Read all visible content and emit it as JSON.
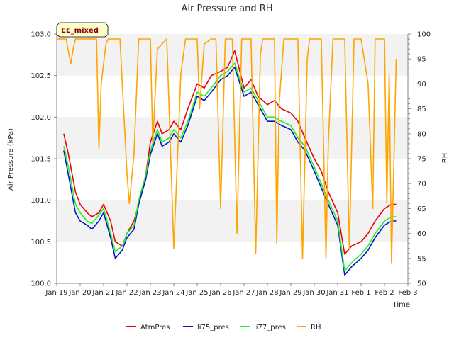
{
  "chart_data": {
    "type": "line",
    "title": "Air Pressure and RH",
    "xlabel": "Time",
    "ylabel": "Air Pressure (kPa)",
    "y2label": "RH",
    "badge": "EE_mixed",
    "x_ticks": [
      "Jan 19",
      "Jan 20",
      "Jan 21",
      "Jan 22",
      "Jan 23",
      "Jan 24",
      "Jan 25",
      "Jan 26",
      "Jan 27",
      "Jan 28",
      "Jan 29",
      "Jan 30",
      "Jan 31",
      "Feb 1",
      "Feb 2",
      "Feb 3"
    ],
    "x_range": [
      0,
      15
    ],
    "ylim": [
      100.0,
      103.0
    ],
    "y_ticks": [
      "100.0",
      "100.5",
      "101.0",
      "101.5",
      "102.0",
      "102.5",
      "103.0"
    ],
    "y2lim": [
      50,
      100
    ],
    "y2_ticks": [
      "50",
      "55",
      "60",
      "65",
      "70",
      "75",
      "80",
      "85",
      "90",
      "95",
      "100"
    ],
    "grid": "horizontal bands",
    "legend_position": "bottom",
    "colors": {
      "AtmPres": "#e8000b",
      "li75_pres": "#0018cc",
      "li77_pres": "#22ee22",
      "RH": "#ffa500",
      "band": "#f2f2f2",
      "badge_bg": "#ffffcc"
    },
    "x_unit": "days since Jan 19",
    "series": [
      {
        "name": "AtmPres",
        "axis": "left",
        "x": [
          0.3,
          0.5,
          0.8,
          1.0,
          1.3,
          1.5,
          1.8,
          2.0,
          2.3,
          2.5,
          2.8,
          3.0,
          3.3,
          3.5,
          3.8,
          4.0,
          4.3,
          4.5,
          4.8,
          5.0,
          5.3,
          5.6,
          6.0,
          6.3,
          6.6,
          7.0,
          7.3,
          7.6,
          8.0,
          8.3,
          8.6,
          9.0,
          9.3,
          9.6,
          10.0,
          10.3,
          10.6,
          11.0,
          11.3,
          11.6,
          12.0,
          12.3,
          12.6,
          13.0,
          13.3,
          13.6,
          14.0,
          14.3,
          14.5
        ],
        "values": [
          101.8,
          101.55,
          101.1,
          100.95,
          100.85,
          100.8,
          100.85,
          100.95,
          100.75,
          100.5,
          100.45,
          100.6,
          100.75,
          100.95,
          101.3,
          101.7,
          101.95,
          101.8,
          101.85,
          101.95,
          101.85,
          102.1,
          102.4,
          102.35,
          102.5,
          102.55,
          102.6,
          102.8,
          102.35,
          102.45,
          102.25,
          102.15,
          102.2,
          102.1,
          102.05,
          101.95,
          101.75,
          101.5,
          101.35,
          101.1,
          100.85,
          100.35,
          100.45,
          100.5,
          100.6,
          100.75,
          100.9,
          100.95,
          100.95
        ]
      },
      {
        "name": "li75_pres",
        "axis": "left",
        "x": [
          0.3,
          0.5,
          0.8,
          1.0,
          1.3,
          1.5,
          1.8,
          2.0,
          2.3,
          2.5,
          2.8,
          3.0,
          3.3,
          3.5,
          3.8,
          4.0,
          4.3,
          4.5,
          4.8,
          5.0,
          5.3,
          5.6,
          6.0,
          6.3,
          6.6,
          7.0,
          7.3,
          7.6,
          8.0,
          8.3,
          8.6,
          9.0,
          9.3,
          9.6,
          10.0,
          10.3,
          10.6,
          11.0,
          11.3,
          11.6,
          12.0,
          12.3,
          12.6,
          13.0,
          13.3,
          13.6,
          14.0,
          14.3,
          14.5
        ],
        "values": [
          101.6,
          101.3,
          100.85,
          100.75,
          100.7,
          100.65,
          100.75,
          100.85,
          100.55,
          100.3,
          100.4,
          100.55,
          100.65,
          100.95,
          101.25,
          101.55,
          101.8,
          101.65,
          101.7,
          101.8,
          101.7,
          101.9,
          102.25,
          102.2,
          102.3,
          102.45,
          102.5,
          102.6,
          102.25,
          102.3,
          102.15,
          101.95,
          101.95,
          101.9,
          101.85,
          101.7,
          101.6,
          101.35,
          101.15,
          100.95,
          100.7,
          100.1,
          100.2,
          100.3,
          100.4,
          100.55,
          100.7,
          100.75,
          100.75
        ]
      },
      {
        "name": "li77_pres",
        "axis": "left",
        "x": [
          0.3,
          0.5,
          0.8,
          1.0,
          1.3,
          1.5,
          1.8,
          2.0,
          2.3,
          2.5,
          2.8,
          3.0,
          3.3,
          3.5,
          3.8,
          4.0,
          4.3,
          4.5,
          4.8,
          5.0,
          5.3,
          5.6,
          6.0,
          6.3,
          6.6,
          7.0,
          7.3,
          7.6,
          8.0,
          8.3,
          8.6,
          9.0,
          9.3,
          9.6,
          10.0,
          10.3,
          10.6,
          11.0,
          11.3,
          11.6,
          12.0,
          12.3,
          12.6,
          13.0,
          13.3,
          13.6,
          14.0,
          14.3,
          14.5
        ],
        "values": [
          101.65,
          101.4,
          100.95,
          100.85,
          100.75,
          100.72,
          100.82,
          100.9,
          100.6,
          100.38,
          100.45,
          100.6,
          100.7,
          101.0,
          101.3,
          101.6,
          101.85,
          101.7,
          101.75,
          101.85,
          101.75,
          101.95,
          102.3,
          102.25,
          102.35,
          102.5,
          102.55,
          102.65,
          102.3,
          102.35,
          102.2,
          102.0,
          102.0,
          101.95,
          101.9,
          101.75,
          101.65,
          101.4,
          101.2,
          101.0,
          100.75,
          100.15,
          100.25,
          100.35,
          100.45,
          100.6,
          100.75,
          100.8,
          100.8
        ]
      },
      {
        "name": "RH",
        "axis": "right",
        "x": [
          0.0,
          0.4,
          0.6,
          0.7,
          0.8,
          1.0,
          1.3,
          1.7,
          1.8,
          1.9,
          2.0,
          2.1,
          2.2,
          2.3,
          2.7,
          3.0,
          3.1,
          3.3,
          3.5,
          3.7,
          4.0,
          4.1,
          4.3,
          4.5,
          4.7,
          5.0,
          5.2,
          5.3,
          5.5,
          5.8,
          6.0,
          6.1,
          6.3,
          6.6,
          6.8,
          7.0,
          7.2,
          7.3,
          7.5,
          7.7,
          7.9,
          8.0,
          8.3,
          8.5,
          8.7,
          8.8,
          9.0,
          9.3,
          9.4,
          9.5,
          9.7,
          10.0,
          10.3,
          10.5,
          10.7,
          10.8,
          11.0,
          11.3,
          11.5,
          11.6,
          11.8,
          12.0,
          12.3,
          12.5,
          12.7,
          12.8,
          13.0,
          13.3,
          13.5,
          13.6,
          13.8,
          14.0,
          14.1,
          14.2,
          14.3,
          14.4,
          14.5
        ],
        "values": [
          99,
          99,
          94,
          97,
          99,
          99,
          99,
          99,
          77,
          90,
          94,
          98,
          99,
          99,
          99,
          72,
          66,
          76,
          99,
          99,
          99,
          78,
          97,
          98,
          99,
          57,
          80,
          92,
          99,
          99,
          99,
          85,
          98,
          99,
          99,
          65,
          99,
          99,
          99,
          60,
          99,
          99,
          99,
          56,
          96,
          99,
          99,
          99,
          58,
          86,
          99,
          99,
          99,
          55,
          95,
          99,
          99,
          99,
          55,
          78,
          99,
          99,
          99,
          57,
          99,
          99,
          99,
          90,
          65,
          99,
          99,
          99,
          66,
          92,
          54,
          74,
          95
        ]
      }
    ]
  }
}
